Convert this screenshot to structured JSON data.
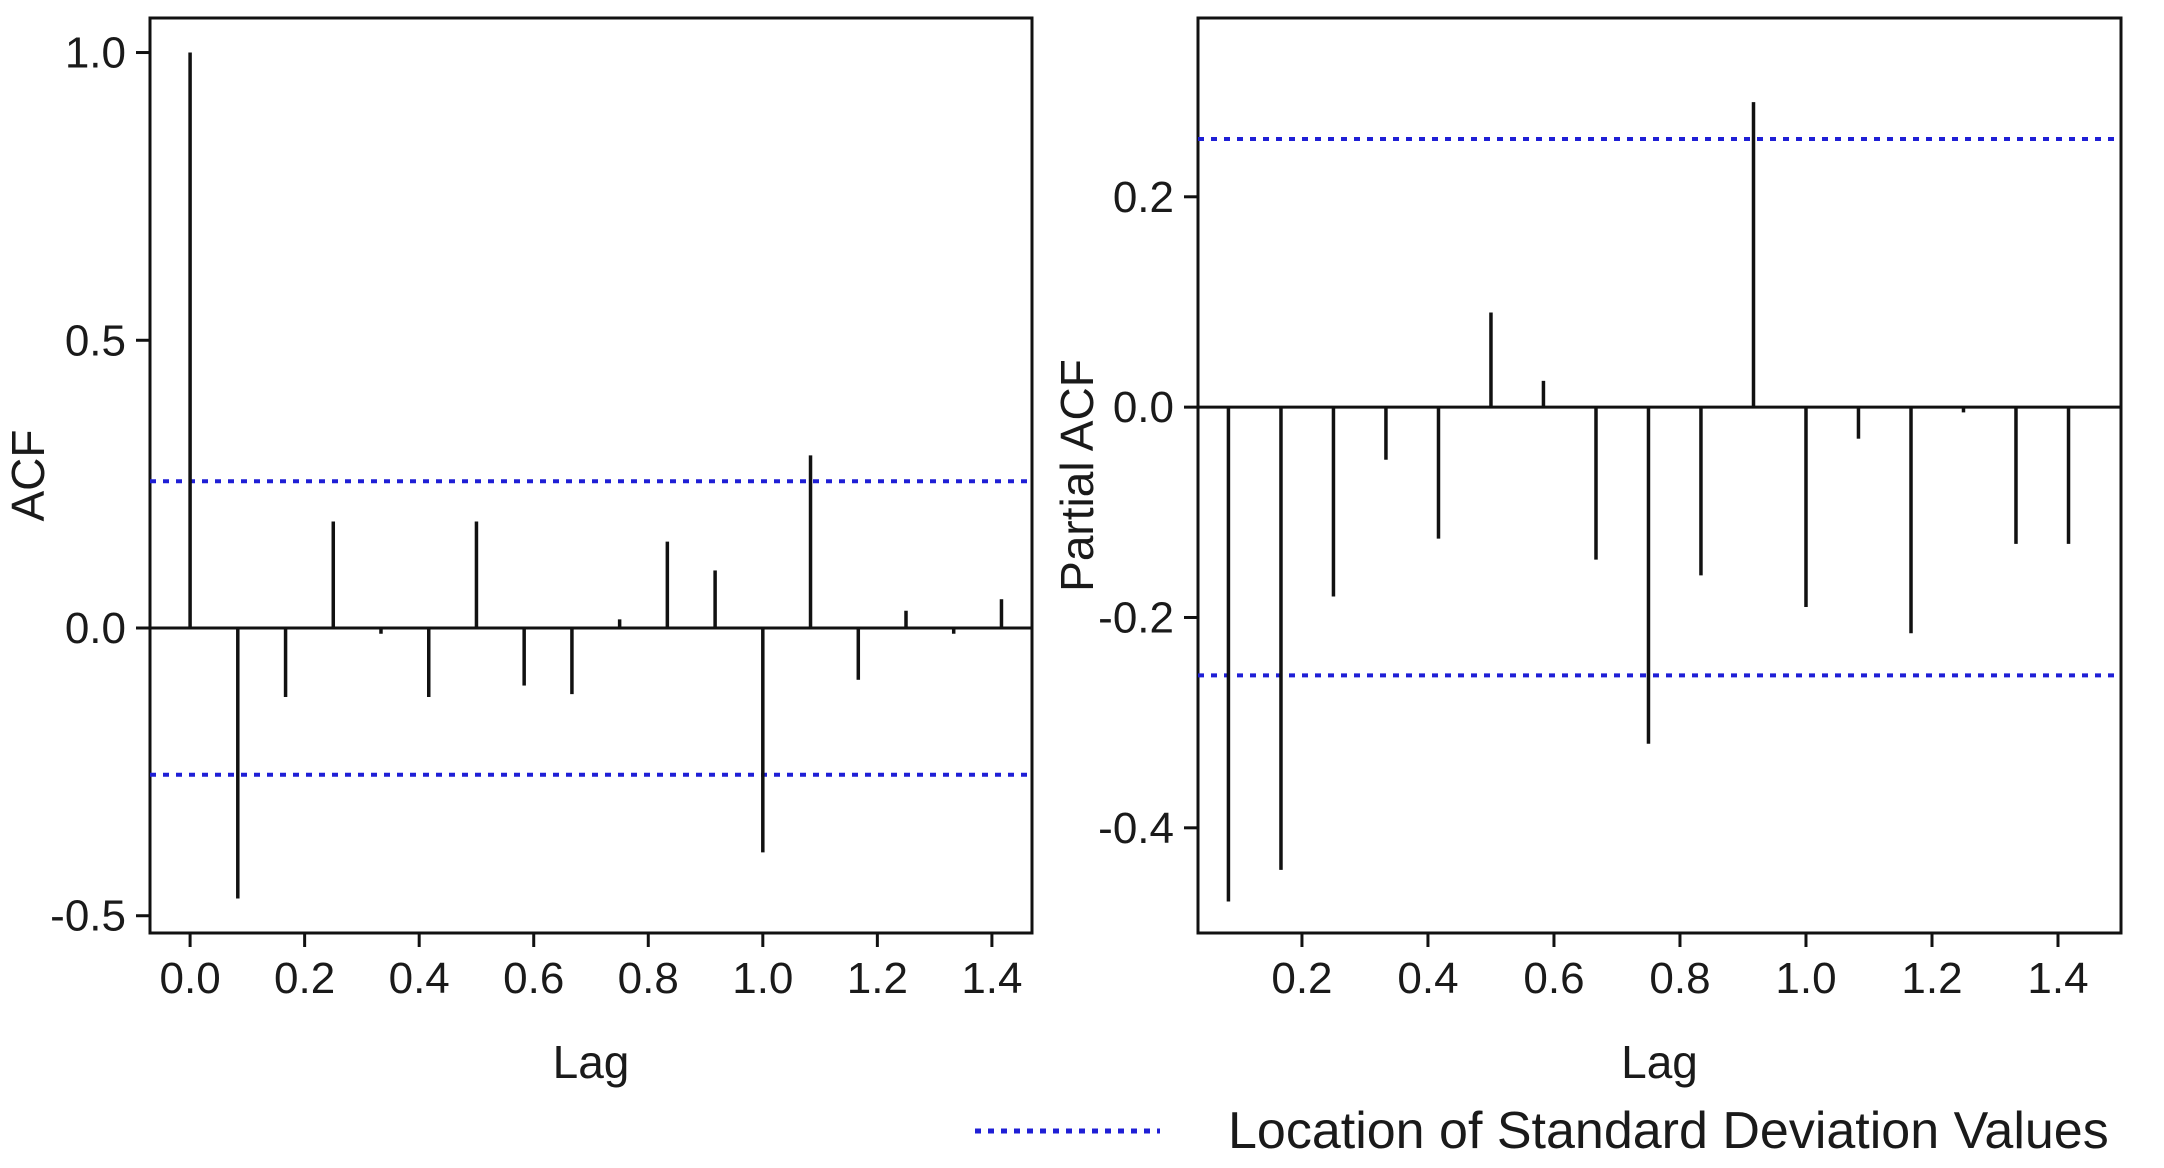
{
  "legend": {
    "label": "Location of Standard Deviation Values",
    "color": "#1f1fd6"
  },
  "chart_data": [
    {
      "type": "stem",
      "name": "acf",
      "xlabel": "Lag",
      "ylabel": "ACF",
      "xlim": [
        -0.07,
        1.47
      ],
      "ylim": [
        -0.53,
        1.06
      ],
      "xticks": [
        0.0,
        0.2,
        0.4,
        0.6,
        0.8,
        1.0,
        1.2,
        1.4
      ],
      "xtick_labels": [
        "0.0",
        "0.2",
        "0.4",
        "0.6",
        "0.8",
        "1.0",
        "1.2",
        "1.4"
      ],
      "yticks": [
        -0.5,
        0.0,
        0.5,
        1.0
      ],
      "ytick_labels": [
        "-0.5",
        "0.0",
        "0.5",
        "1.0"
      ],
      "zero_line": true,
      "sd_bounds": [
        0.255,
        -0.255
      ],
      "x": [
        0.0,
        0.0833,
        0.1667,
        0.25,
        0.3333,
        0.4167,
        0.5,
        0.5833,
        0.6667,
        0.75,
        0.8333,
        0.9167,
        1.0,
        1.0833,
        1.1667,
        1.25,
        1.3333,
        1.4167
      ],
      "values": [
        1.0,
        -0.47,
        -0.12,
        0.185,
        -0.01,
        -0.12,
        0.185,
        -0.1,
        -0.115,
        0.015,
        0.15,
        0.1,
        -0.39,
        0.3,
        -0.09,
        0.03,
        -0.01,
        0.05
      ]
    },
    {
      "type": "stem",
      "name": "pacf",
      "xlabel": "Lag",
      "ylabel": "Partial ACF",
      "xlim": [
        0.035,
        1.5
      ],
      "ylim": [
        -0.5,
        0.37
      ],
      "xticks": [
        0.2,
        0.4,
        0.6,
        0.8,
        1.0,
        1.2,
        1.4
      ],
      "xtick_labels": [
        "0.2",
        "0.4",
        "0.6",
        "0.8",
        "1.0",
        "1.2",
        "1.4"
      ],
      "yticks": [
        -0.4,
        -0.2,
        0.0,
        0.2
      ],
      "ytick_labels": [
        "-0.4",
        "-0.2",
        "0.0",
        "0.2"
      ],
      "zero_line": true,
      "sd_bounds": [
        0.255,
        -0.255
      ],
      "x": [
        0.0833,
        0.1667,
        0.25,
        0.3333,
        0.4167,
        0.5,
        0.5833,
        0.6667,
        0.75,
        0.8333,
        0.9167,
        1.0,
        1.0833,
        1.1667,
        1.25,
        1.3333,
        1.4167
      ],
      "values": [
        -0.47,
        -0.44,
        -0.18,
        -0.05,
        -0.125,
        0.09,
        0.025,
        -0.145,
        -0.32,
        -0.16,
        0.29,
        -0.19,
        -0.03,
        -0.215,
        -0.005,
        -0.13,
        -0.13
      ]
    }
  ]
}
